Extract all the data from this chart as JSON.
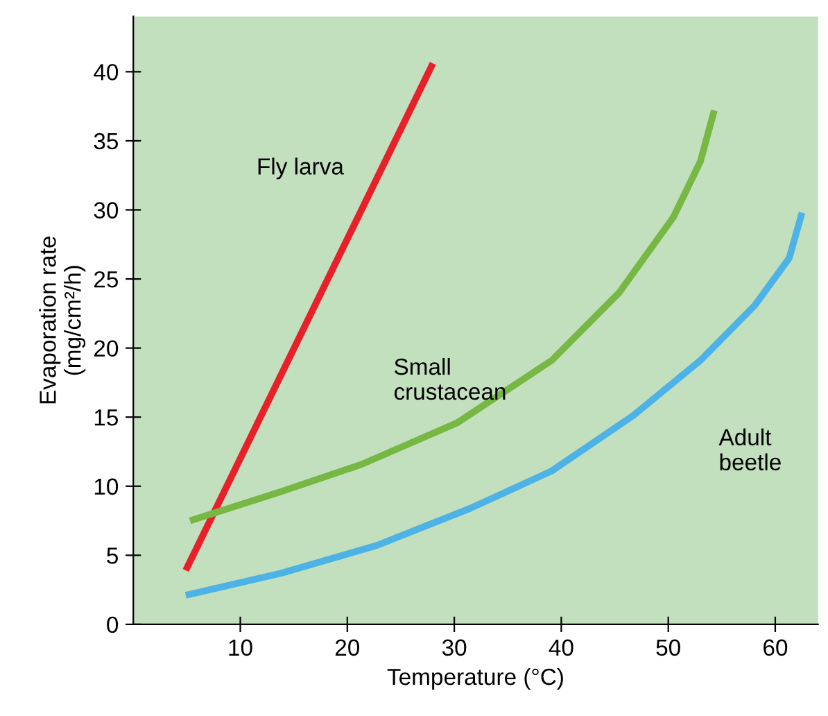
{
  "chart_data": {
    "type": "line",
    "xlabel": "Temperature (°C)",
    "ylabel": "Evaporation rate\n(mg/cm²/h)",
    "xlim": [
      0,
      64
    ],
    "xticks": [
      10,
      20,
      30,
      40,
      50,
      60
    ],
    "ylim": [
      0,
      44
    ],
    "yticks": [
      0,
      5,
      10,
      15,
      20,
      25,
      30,
      35,
      40
    ],
    "grid": false,
    "legend": false,
    "marker": "none",
    "line_style": "solid",
    "series": [
      {
        "name": "Fly larva",
        "color": "#e8202a",
        "x": [
          4.9,
          28
        ],
        "values": [
          3.9,
          40.6
        ]
      },
      {
        "name": "Small\ncrustacean",
        "color": "#76b843",
        "x": [
          5.3,
          13.8,
          21.4,
          30.3,
          39.1,
          45.4,
          50.5,
          53,
          54.3
        ],
        "values": [
          7.5,
          9.6,
          11.6,
          14.6,
          19.1,
          24,
          29.5,
          33.5,
          37.2
        ]
      },
      {
        "name": "Adult\nbeetle",
        "color": "#4db3e6",
        "x": [
          4.9,
          13.8,
          22.7,
          31.5,
          39.1,
          46.7,
          53,
          58.1,
          61.3,
          62.5
        ],
        "values": [
          2.1,
          3.7,
          5.7,
          8.4,
          11.1,
          15.1,
          19.1,
          23.1,
          26.5,
          29.8
        ]
      }
    ]
  }
}
